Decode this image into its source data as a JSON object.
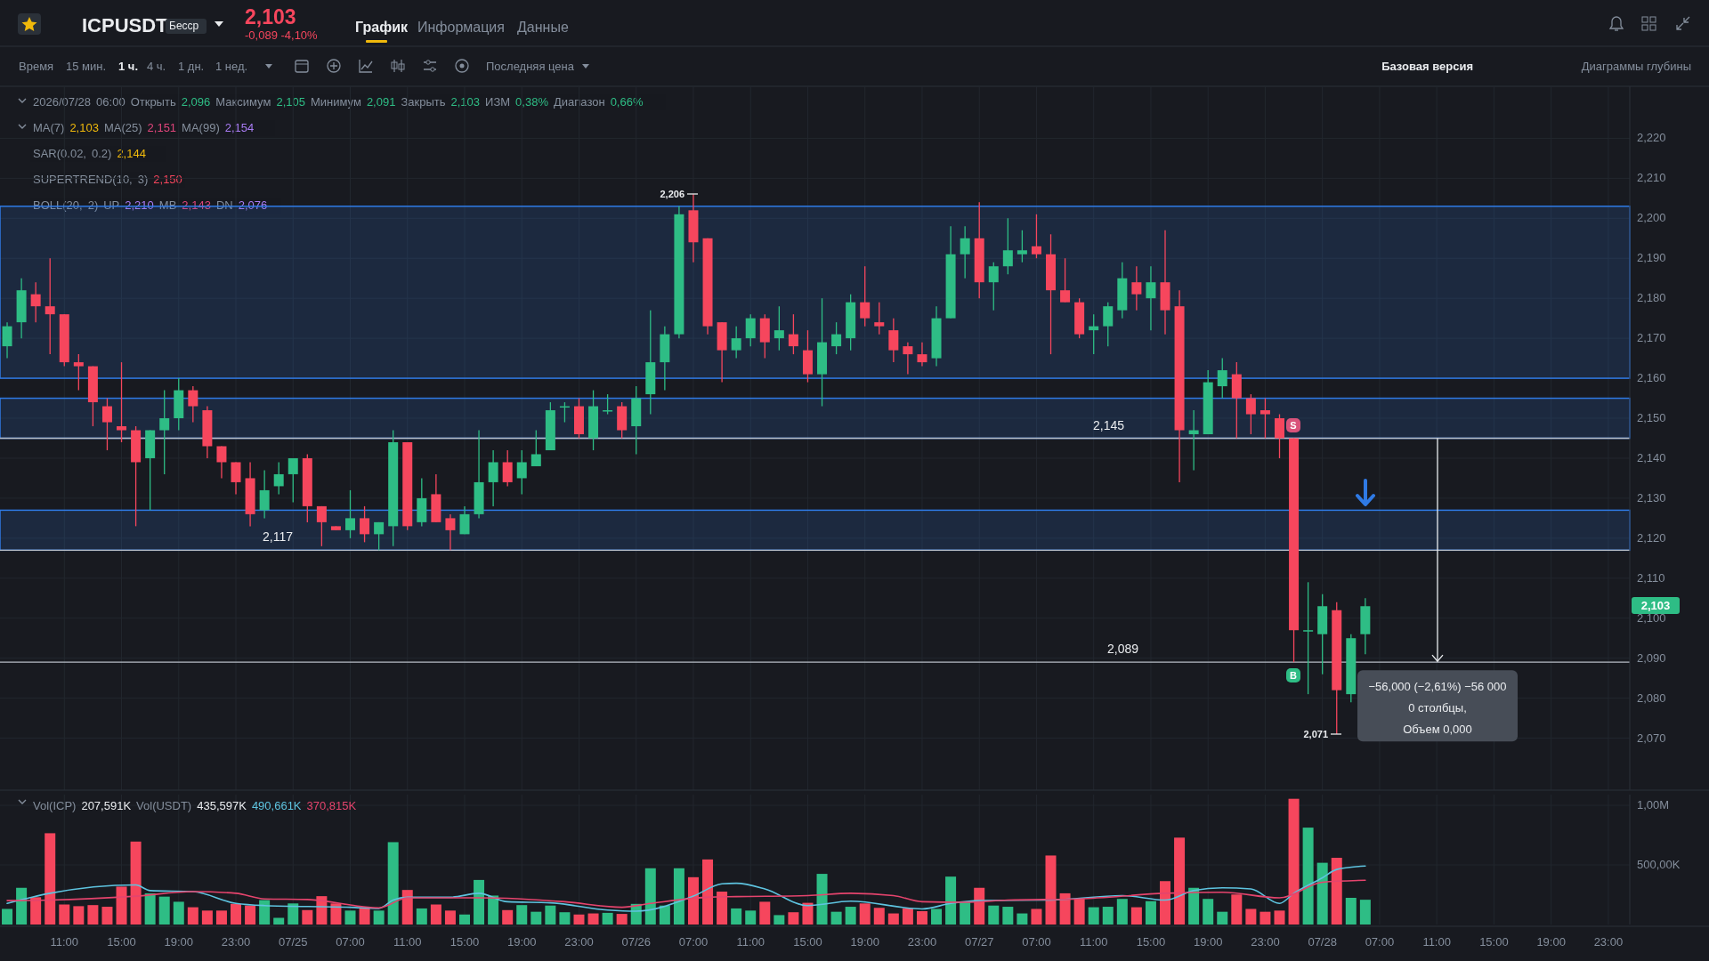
{
  "chart_data": [
    {
      "type": "candlestick",
      "title": "ICPUSDT",
      "annotations": [
        "Бесср",
        "2,103",
        "-0,089 -4,10%",
        "График",
        "Информация",
        "Данные",
        "Время",
        "15 мин.",
        "1 ч.",
        "4 ч.",
        "1 дн.",
        "1 нед.",
        "Последняя цена",
        "Базовая версия",
        "Диаграммы глубины",
        "2026/07/28 06:00 Открыть 2,096 Максимум 2,105 Минимум 2,091 Закрыть 2,103 ИЗМ 0,38% Диапазон 0,66%",
        "MA(7) 2,103 MA(25) 2,151 MA(99) 2,154",
        "SAR(0.02, 0.2) 2,144",
        "SUPERTREND(10, 3) 2,150",
        "BOLL(20, 2) UP 2,210 MB 2,143 DN 2,076",
        "2,103",
        "2,206",
        "2,071",
        "S",
        "B",
        {
          "text": "−56,000 (−2,61%) −56 000\n0 столбцы,\nОбъем 0,000",
          "y": 2.089
        }
      ],
      "categories": [
        null,
        null,
        null,
        null,
        null,
        null,
        null,
        null,
        null,
        null,
        null,
        null,
        null,
        null,
        null,
        null,
        null,
        null,
        null,
        null,
        null,
        null,
        null,
        null,
        null,
        null,
        null,
        null,
        null,
        null,
        null,
        null,
        null,
        null,
        null,
        null,
        null,
        null,
        null,
        null,
        null,
        null,
        null,
        null,
        null,
        null,
        null,
        null,
        null,
        null,
        null,
        null,
        null,
        null,
        null,
        null,
        null,
        null,
        null,
        null,
        null,
        null,
        null,
        null,
        null,
        null,
        null,
        null,
        null,
        null,
        null,
        null,
        null,
        null,
        null,
        null,
        null,
        null,
        null,
        null,
        null,
        null,
        null,
        null,
        null,
        null,
        null,
        null,
        null,
        null,
        null,
        null,
        null,
        null,
        null,
        null,
        null,
        null,
        null,
        null,
        null,
        null,
        null,
        null,
        null,
        null,
        null,
        null,
        null,
        null,
        null,
        null,
        null,
        null
      ],
      "ohlc": [
        [
          2.168,
          2.174,
          2.165,
          2.173
        ],
        [
          2.174,
          2.185,
          2.17,
          2.182
        ],
        [
          2.181,
          2.184,
          2.174,
          2.178
        ],
        [
          2.178,
          2.19,
          2.166,
          2.176
        ],
        [
          2.176,
          2.176,
          2.163,
          2.164
        ],
        [
          2.164,
          2.166,
          2.157,
          2.163
        ],
        [
          2.163,
          2.163,
          2.148,
          2.154
        ],
        [
          2.153,
          2.155,
          2.142,
          2.149
        ],
        [
          2.148,
          2.164,
          2.144,
          2.147
        ],
        [
          2.147,
          2.148,
          2.123,
          2.139
        ],
        [
          2.14,
          2.147,
          2.127,
          2.147
        ],
        [
          2.147,
          2.157,
          2.136,
          2.15
        ],
        [
          2.15,
          2.16,
          2.147,
          2.157
        ],
        [
          2.157,
          2.158,
          2.149,
          2.153
        ],
        [
          2.152,
          2.153,
          2.14,
          2.143
        ],
        [
          2.143,
          2.143,
          2.135,
          2.139
        ],
        [
          2.139,
          2.139,
          2.131,
          2.134
        ],
        [
          2.135,
          2.139,
          2.123,
          2.126
        ],
        [
          2.127,
          2.137,
          2.125,
          2.132
        ],
        [
          2.133,
          2.139,
          2.131,
          2.136
        ],
        [
          2.136,
          2.14,
          2.129,
          2.14
        ],
        [
          2.14,
          2.141,
          2.124,
          2.128
        ],
        [
          2.128,
          2.128,
          2.118,
          2.124
        ],
        [
          2.123,
          2.123,
          2.122,
          2.122
        ],
        [
          2.122,
          2.132,
          2.12,
          2.125
        ],
        [
          2.125,
          2.128,
          2.119,
          2.121
        ],
        [
          2.121,
          2.124,
          2.117,
          2.124
        ],
        [
          2.123,
          2.147,
          2.118,
          2.144
        ],
        [
          2.144,
          2.144,
          2.122,
          2.123
        ],
        [
          2.124,
          2.135,
          2.123,
          2.13
        ],
        [
          2.131,
          2.136,
          2.124,
          2.124
        ],
        [
          2.125,
          2.126,
          2.117,
          2.122
        ],
        [
          2.121,
          2.128,
          2.121,
          2.126
        ],
        [
          2.126,
          2.147,
          2.125,
          2.134
        ],
        [
          2.134,
          2.142,
          2.128,
          2.139
        ],
        [
          2.139,
          2.142,
          2.133,
          2.134
        ],
        [
          2.135,
          2.142,
          2.131,
          2.139
        ],
        [
          2.138,
          2.147,
          2.138,
          2.141
        ],
        [
          2.142,
          2.154,
          2.142,
          2.152
        ],
        [
          2.153,
          2.154,
          2.149,
          2.153
        ],
        [
          2.153,
          2.155,
          2.145,
          2.146
        ],
        [
          2.145,
          2.157,
          2.142,
          2.153
        ],
        [
          2.152,
          2.156,
          2.151,
          2.152
        ],
        [
          2.153,
          2.154,
          2.145,
          2.147
        ],
        [
          2.148,
          2.158,
          2.141,
          2.155
        ],
        [
          2.156,
          2.177,
          2.151,
          2.164
        ],
        [
          2.164,
          2.173,
          2.157,
          2.171
        ],
        [
          2.171,
          2.203,
          2.17,
          2.201
        ],
        [
          2.202,
          2.206,
          2.189,
          2.194
        ],
        [
          2.195,
          2.195,
          2.171,
          2.173
        ],
        [
          2.174,
          2.174,
          2.159,
          2.167
        ],
        [
          2.167,
          2.173,
          2.165,
          2.17
        ],
        [
          2.17,
          2.176,
          2.168,
          2.175
        ],
        [
          2.175,
          2.176,
          2.165,
          2.169
        ],
        [
          2.17,
          2.178,
          2.167,
          2.172
        ],
        [
          2.171,
          2.176,
          2.166,
          2.168
        ],
        [
          2.167,
          2.172,
          2.159,
          2.161
        ],
        [
          2.161,
          2.18,
          2.153,
          2.169
        ],
        [
          2.168,
          2.174,
          2.166,
          2.171
        ],
        [
          2.17,
          2.181,
          2.167,
          2.179
        ],
        [
          2.179,
          2.188,
          2.173,
          2.175
        ],
        [
          2.174,
          2.179,
          2.171,
          2.173
        ],
        [
          2.172,
          2.175,
          2.164,
          2.167
        ],
        [
          2.168,
          2.169,
          2.161,
          2.166
        ],
        [
          2.166,
          2.169,
          2.163,
          2.164
        ],
        [
          2.165,
          2.178,
          2.163,
          2.175
        ],
        [
          2.175,
          2.198,
          2.175,
          2.191
        ],
        [
          2.191,
          2.198,
          2.185,
          2.195
        ],
        [
          2.195,
          2.204,
          2.18,
          2.184
        ],
        [
          2.184,
          2.189,
          2.177,
          2.188
        ],
        [
          2.188,
          2.2,
          2.186,
          2.192
        ],
        [
          2.191,
          2.197,
          2.189,
          2.192
        ],
        [
          2.193,
          2.201,
          2.19,
          2.191
        ],
        [
          2.191,
          2.196,
          2.166,
          2.182
        ],
        [
          2.182,
          2.19,
          2.179,
          2.179
        ],
        [
          2.179,
          2.18,
          2.17,
          2.171
        ],
        [
          2.172,
          2.176,
          2.166,
          2.173
        ],
        [
          2.173,
          2.179,
          2.168,
          2.178
        ],
        [
          2.177,
          2.189,
          2.175,
          2.185
        ],
        [
          2.184,
          2.188,
          2.177,
          2.181
        ],
        [
          2.18,
          2.188,
          2.172,
          2.184
        ],
        [
          2.184,
          2.197,
          2.171,
          2.177
        ],
        [
          2.178,
          2.182,
          2.134,
          2.147
        ],
        [
          2.146,
          2.152,
          2.137,
          2.147
        ],
        [
          2.146,
          2.162,
          2.146,
          2.159
        ],
        [
          2.158,
          2.165,
          2.155,
          2.162
        ],
        [
          2.161,
          2.164,
          2.145,
          2.155
        ],
        [
          2.155,
          2.156,
          2.146,
          2.151
        ],
        [
          2.152,
          2.155,
          2.145,
          2.151
        ],
        [
          2.15,
          2.151,
          2.14,
          2.145
        ],
        [
          2.145,
          2.145,
          2.089,
          2.097
        ],
        [
          2.097,
          2.109,
          2.081,
          2.097
        ],
        [
          2.096,
          2.106,
          2.086,
          2.103
        ],
        [
          2.102,
          2.104,
          2.071,
          2.082
        ],
        [
          2.081,
          2.096,
          2.079,
          2.095
        ],
        [
          2.096,
          2.105,
          2.091,
          2.103
        ],
        null,
        null,
        null,
        null,
        null,
        null,
        null,
        null,
        null,
        null,
        null,
        null,
        null,
        null,
        null,
        null,
        null,
        null
      ],
      "ylim": [
        2.057,
        2.233
      ],
      "yticks": [
        {
          "value": 2.07,
          "label": "2,070"
        },
        {
          "value": 2.08,
          "label": "2,080"
        },
        {
          "value": 2.09,
          "label": "2,090"
        },
        {
          "value": 2.1,
          "label": "2,100"
        },
        {
          "value": 2.11,
          "label": "2,110"
        },
        {
          "value": 2.12,
          "label": "2,120"
        },
        {
          "value": 2.13,
          "label": "2,130"
        },
        {
          "value": 2.14,
          "label": "2,140"
        },
        {
          "value": 2.15,
          "label": "2,150"
        },
        {
          "value": 2.16,
          "label": "2,160"
        },
        {
          "value": 2.17,
          "label": "2,170"
        },
        {
          "value": 2.18,
          "label": "2,180"
        },
        {
          "value": 2.19,
          "label": "2,190"
        },
        {
          "value": 2.2,
          "label": "2,200"
        },
        {
          "value": 2.21,
          "label": "2,210"
        },
        {
          "value": 2.22,
          "label": "2,220"
        }
      ],
      "ref_lines": [
        {
          "axis": "y",
          "value": 2.117,
          "label": "2,117",
          "color": "#b7bdc6"
        },
        {
          "axis": "y",
          "value": 2.145,
          "label": "2,145",
          "color": "#b7bdc6"
        },
        {
          "axis": "y",
          "value": 2.089,
          "label": "2,089",
          "color": "#b7bdc6"
        }
      ],
      "bands": [
        {
          "axis": "y",
          "from": 2.16,
          "to": 2.203,
          "color": "#2f7ae5"
        },
        {
          "axis": "y",
          "from": 2.145,
          "to": 2.155,
          "color": "#2f7ae5"
        },
        {
          "axis": "y",
          "from": 2.117,
          "to": 2.127,
          "color": "#2f7ae5"
        }
      ],
      "grid": true,
      "tick_labels": "y"
    },
    {
      "type": "bar",
      "annotations": [
        "Vol(ICP) 207,591K Vol(USDT) 435,597K 490,661K 370,815K"
      ],
      "categories": [
        null,
        null,
        null,
        null,
        "11:00",
        null,
        null,
        null,
        "15:00",
        null,
        null,
        null,
        "19:00",
        null,
        null,
        null,
        "23:00",
        null,
        null,
        null,
        "07/25",
        null,
        null,
        null,
        "07:00",
        null,
        null,
        null,
        "11:00",
        null,
        null,
        null,
        "15:00",
        null,
        null,
        null,
        "19:00",
        null,
        null,
        null,
        "23:00",
        null,
        null,
        null,
        "07/26",
        null,
        null,
        null,
        "07:00",
        null,
        null,
        null,
        "11:00",
        null,
        null,
        null,
        "15:00",
        null,
        null,
        null,
        "19:00",
        null,
        null,
        null,
        "23:00",
        null,
        null,
        null,
        "07/27",
        null,
        null,
        null,
        "07:00",
        null,
        null,
        null,
        "11:00",
        null,
        null,
        null,
        "15:00",
        null,
        null,
        null,
        "19:00",
        null,
        null,
        null,
        "23:00",
        null,
        null,
        null,
        "07/28",
        null,
        null,
        null,
        "07:00",
        null,
        null,
        null,
        "11:00",
        null,
        null,
        null,
        "15:00",
        null,
        null,
        null,
        "19:00",
        null,
        null,
        null,
        "23:00",
        null
      ],
      "series": [
        {
          "type": "bar",
          "values": [
            131000,
            308000,
            229000,
            766000,
            168000,
            154000,
            163000,
            149000,
            318000,
            696000,
            262000,
            234000,
            191000,
            145000,
            117000,
            117000,
            173000,
            159000,
            205000,
            56000,
            177000,
            121000,
            238000,
            177000,
            117000,
            140000,
            117000,
            691000,
            290000,
            135000,
            168000,
            117000,
            84000,
            374000,
            243000,
            121000,
            163000,
            107000,
            159000,
            103000,
            84000,
            93000,
            98000,
            89000,
            173000,
            472000,
            159000,
            472000,
            397000,
            546000,
            276000,
            135000,
            117000,
            191000,
            79000,
            103000,
            182000,
            425000,
            107000,
            149000,
            177000,
            140000,
            93000,
            135000,
            112000,
            131000,
            402000,
            191000,
            308000,
            159000,
            149000,
            93000,
            131000,
            579000,
            262000,
            215000,
            145000,
            149000,
            215000,
            145000,
            196000,
            364000,
            729000,
            308000,
            215000,
            107000,
            252000,
            131000,
            107000,
            117000,
            1055000,
            813000,
            518000,
            560000,
            224000,
            208000,
            null,
            null,
            null,
            null,
            null,
            null,
            null,
            null,
            null,
            null,
            null,
            null,
            null,
            null,
            null,
            null,
            null,
            null
          ],
          "colors": [
            "#2ebd85",
            "#2ebd85",
            "#f6465d",
            "#f6465d",
            "#f6465d",
            "#f6465d",
            "#f6465d",
            "#f6465d",
            "#f6465d",
            "#f6465d",
            "#2ebd85",
            "#2ebd85",
            "#2ebd85",
            "#f6465d",
            "#f6465d",
            "#f6465d",
            "#f6465d",
            "#f6465d",
            "#2ebd85",
            "#2ebd85",
            "#2ebd85",
            "#f6465d",
            "#f6465d",
            "#f6465d",
            "#2ebd85",
            "#f6465d",
            "#2ebd85",
            "#2ebd85",
            "#f6465d",
            "#2ebd85",
            "#f6465d",
            "#f6465d",
            "#2ebd85",
            "#2ebd85",
            "#2ebd85",
            "#f6465d",
            "#2ebd85",
            "#2ebd85",
            "#2ebd85",
            "#2ebd85",
            "#f6465d",
            "#f6465d",
            "#2ebd85",
            "#f6465d",
            "#2ebd85",
            "#2ebd85",
            "#2ebd85",
            "#2ebd85",
            "#f6465d",
            "#f6465d",
            "#f6465d",
            "#2ebd85",
            "#2ebd85",
            "#f6465d",
            "#2ebd85",
            "#f6465d",
            "#f6465d",
            "#2ebd85",
            "#2ebd85",
            "#2ebd85",
            "#f6465d",
            "#f6465d",
            "#f6465d",
            "#f6465d",
            "#f6465d",
            "#2ebd85",
            "#2ebd85",
            "#2ebd85",
            "#f6465d",
            "#2ebd85",
            "#2ebd85",
            "#2ebd85",
            "#f6465d",
            "#f6465d",
            "#f6465d",
            "#f6465d",
            "#2ebd85",
            "#2ebd85",
            "#2ebd85",
            "#f6465d",
            "#2ebd85",
            "#f6465d",
            "#f6465d",
            "#2ebd85",
            "#2ebd85",
            "#2ebd85",
            "#f6465d",
            "#f6465d",
            "#f6465d",
            "#f6465d",
            "#f6465d",
            "#2ebd85",
            "#2ebd85",
            "#f6465d",
            "#2ebd85",
            "#2ebd85",
            null,
            null,
            null,
            null,
            null,
            null,
            null,
            null,
            null,
            null,
            null,
            null,
            null,
            null,
            null,
            null,
            null,
            null
          ]
        },
        {
          "type": "line",
          "color": "#5ec4e0",
          "values": [
            177000,
            null,
            null,
            262000,
            null,
            null,
            null,
            null,
            null,
            332000,
            285000,
            null,
            null,
            276000,
            null,
            null,
            177000,
            null,
            159000,
            null,
            null,
            null,
            null,
            null,
            145000,
            null,
            135000,
            205000,
            229000,
            null,
            null,
            229000,
            null,
            262000,
            null,
            191000,
            null,
            null,
            182000,
            null,
            null,
            null,
            121000,
            null,
            112000,
            null,
            null,
            null,
            238000,
            null,
            341000,
            346000,
            null,
            299000,
            null,
            null,
            159000,
            null,
            null,
            196000,
            null,
            null,
            null,
            null,
            131000,
            null,
            177000,
            null,
            201000,
            null,
            null,
            null,
            null,
            205000,
            null,
            null,
            null,
            null,
            243000,
            null,
            null,
            205000,
            null,
            285000,
            null,
            308000,
            null,
            299000,
            null,
            177000,
            262000,
            null,
            392000,
            462000,
            null,
            491000,
            null,
            null,
            null,
            null,
            null,
            null,
            null,
            null,
            null,
            null,
            null,
            null,
            null,
            null,
            null,
            null,
            null,
            null
          ]
        },
        {
          "type": "line",
          "color": "#e5446d",
          "values": [
            201000,
            null,
            null,
            205000,
            null,
            null,
            null,
            null,
            null,
            238000,
            null,
            null,
            null,
            276000,
            null,
            null,
            262000,
            null,
            215000,
            null,
            null,
            210000,
            null,
            null,
            null,
            null,
            140000,
            null,
            224000,
            null,
            null,
            null,
            null,
            224000,
            null,
            null,
            null,
            null,
            null,
            191000,
            null,
            null,
            null,
            145000,
            null,
            177000,
            null,
            null,
            null,
            229000,
            null,
            234000,
            null,
            null,
            null,
            null,
            243000,
            null,
            null,
            262000,
            null,
            null,
            243000,
            null,
            191000,
            null,
            null,
            187000,
            null,
            null,
            205000,
            null,
            null,
            null,
            null,
            215000,
            null,
            null,
            null,
            null,
            null,
            262000,
            null,
            null,
            null,
            271000,
            null,
            null,
            null,
            224000,
            null,
            null,
            355000,
            null,
            null,
            371000,
            null,
            null,
            null,
            null,
            null,
            null,
            null,
            null,
            null,
            null,
            null,
            null,
            null,
            null,
            null,
            null,
            null,
            null
          ]
        }
      ],
      "ylim": [
        0,
        1090000
      ],
      "yticks": [
        {
          "value": 500000,
          "label": "500,00K"
        },
        {
          "value": 1000000,
          "label": "1,00M"
        }
      ],
      "grid": true
    }
  ]
}
